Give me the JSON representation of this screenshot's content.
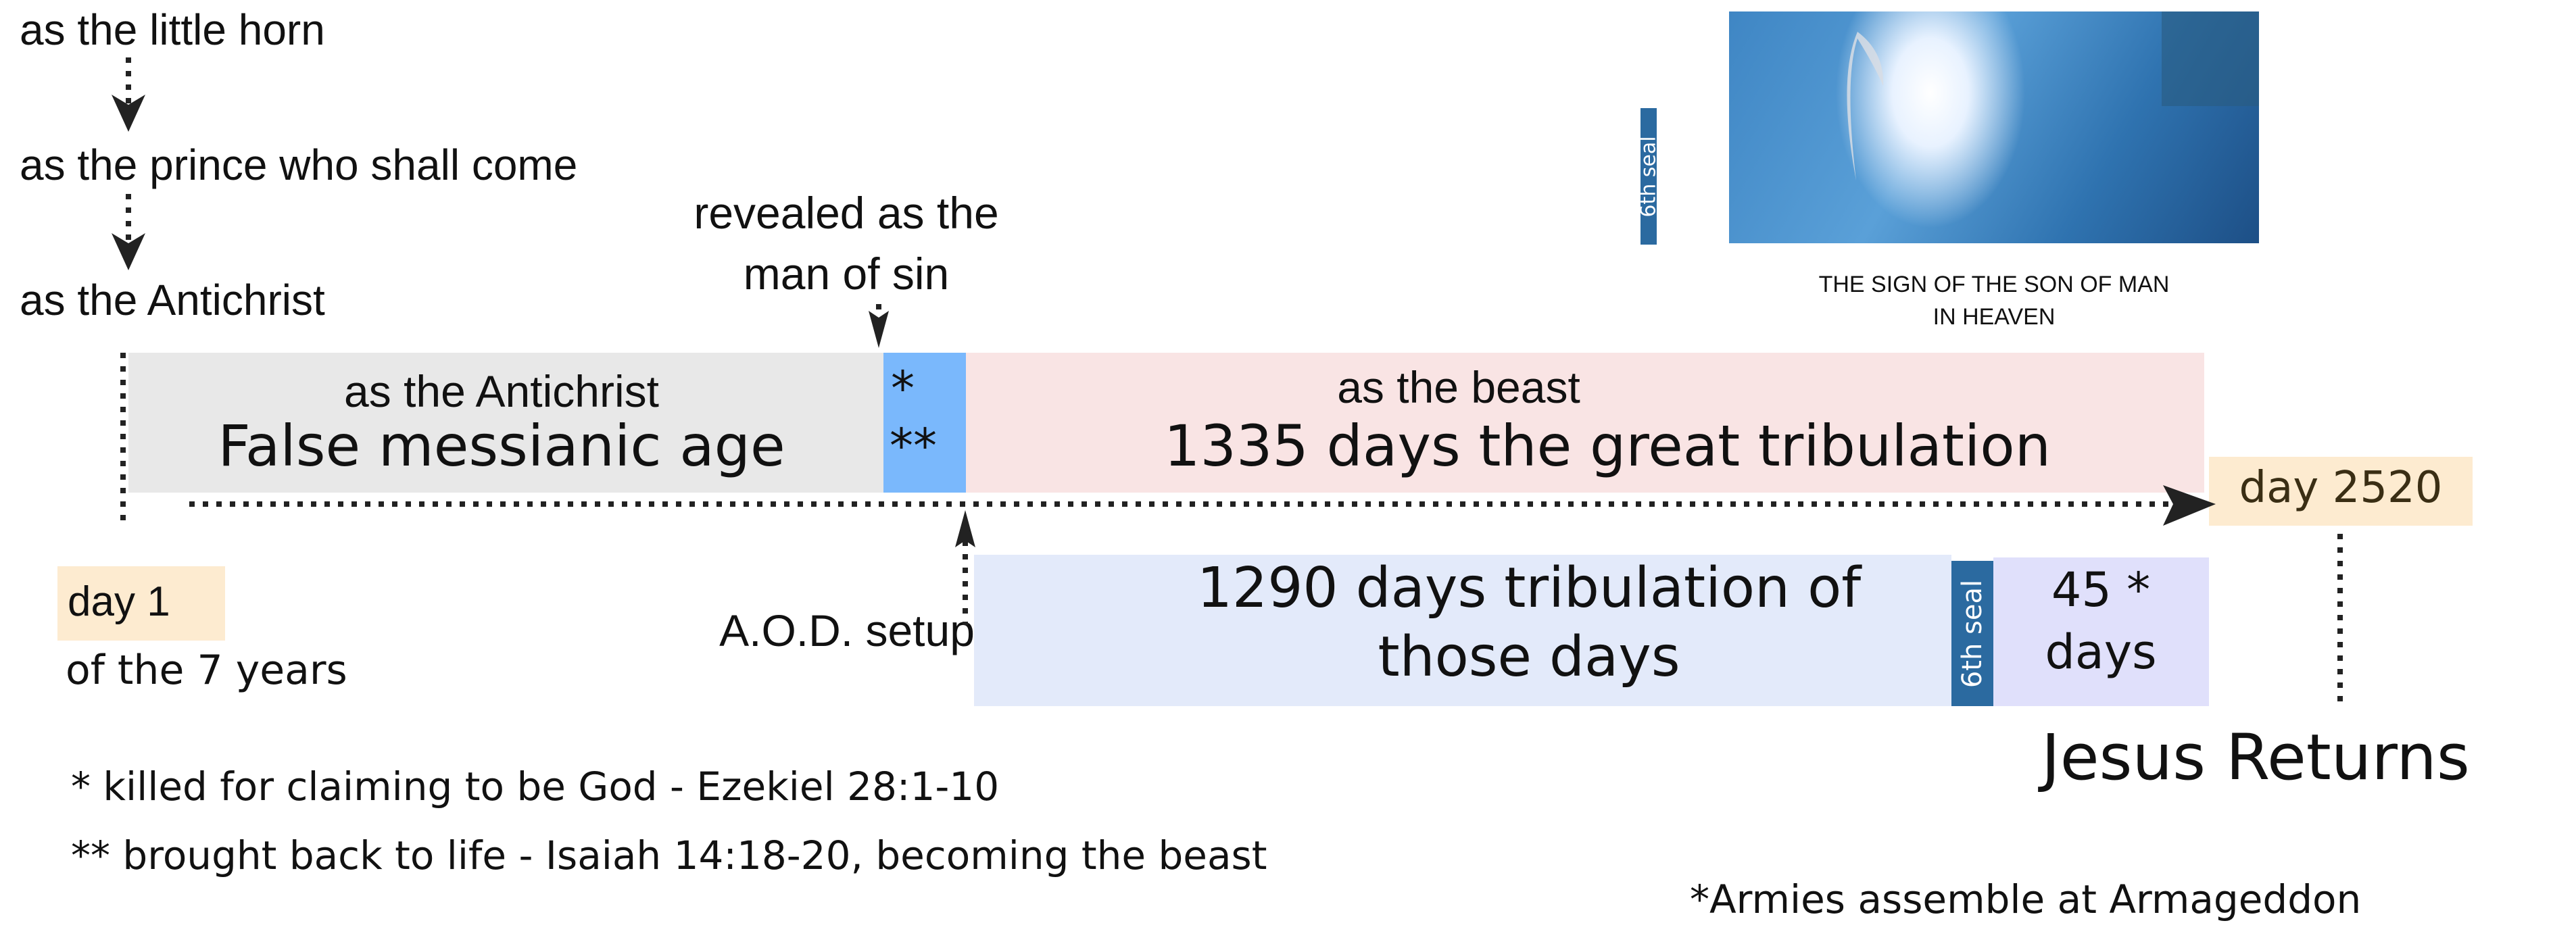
{
  "stages": {
    "little_horn": "as the little horn",
    "prince": "as the prince who shall come",
    "antichrist": "as the Antichrist",
    "revealed_line1": "revealed as the",
    "revealed_line2": "man of sin"
  },
  "timeline": {
    "gray_box": {
      "subtitle": "as the Antichrist",
      "title": "False messianic age",
      "color": "#e8e8e8"
    },
    "blue_box": {
      "line1": "*",
      "line2": "**",
      "color": "#7ab8fc"
    },
    "pink_box": {
      "subtitle": "as the beast",
      "title": "1335 days the great tribulation",
      "color": "#f9e4e4"
    },
    "day_end": {
      "label": "day 2520",
      "color": "#fdebd0"
    },
    "day_start": {
      "label": "day 1",
      "sub": "of the 7 years",
      "color": "#fdebd0"
    },
    "aod": "A.O.D. setup",
    "tribulation_box": {
      "line1": "1290 days tribulation of",
      "line2": "those days",
      "color": "#e3eafa"
    },
    "seal_small": "6th seal",
    "days45_box": {
      "line1": "45 *",
      "line2": "days",
      "color": "#e0e0fb"
    },
    "jesus_returns": "Jesus Returns"
  },
  "sign_image": {
    "seal_label": "6th seal",
    "caption_line1": "THE SIGN OF THE SON OF MAN",
    "caption_line2": "IN HEAVEN"
  },
  "footnotes": {
    "note1": "*  killed for claiming to be God - Ezekiel 28:1-10",
    "note2": "** brought back to life - Isaiah 14:18-20, becoming the beast",
    "note3": "*Armies assemble at Armageddon"
  }
}
